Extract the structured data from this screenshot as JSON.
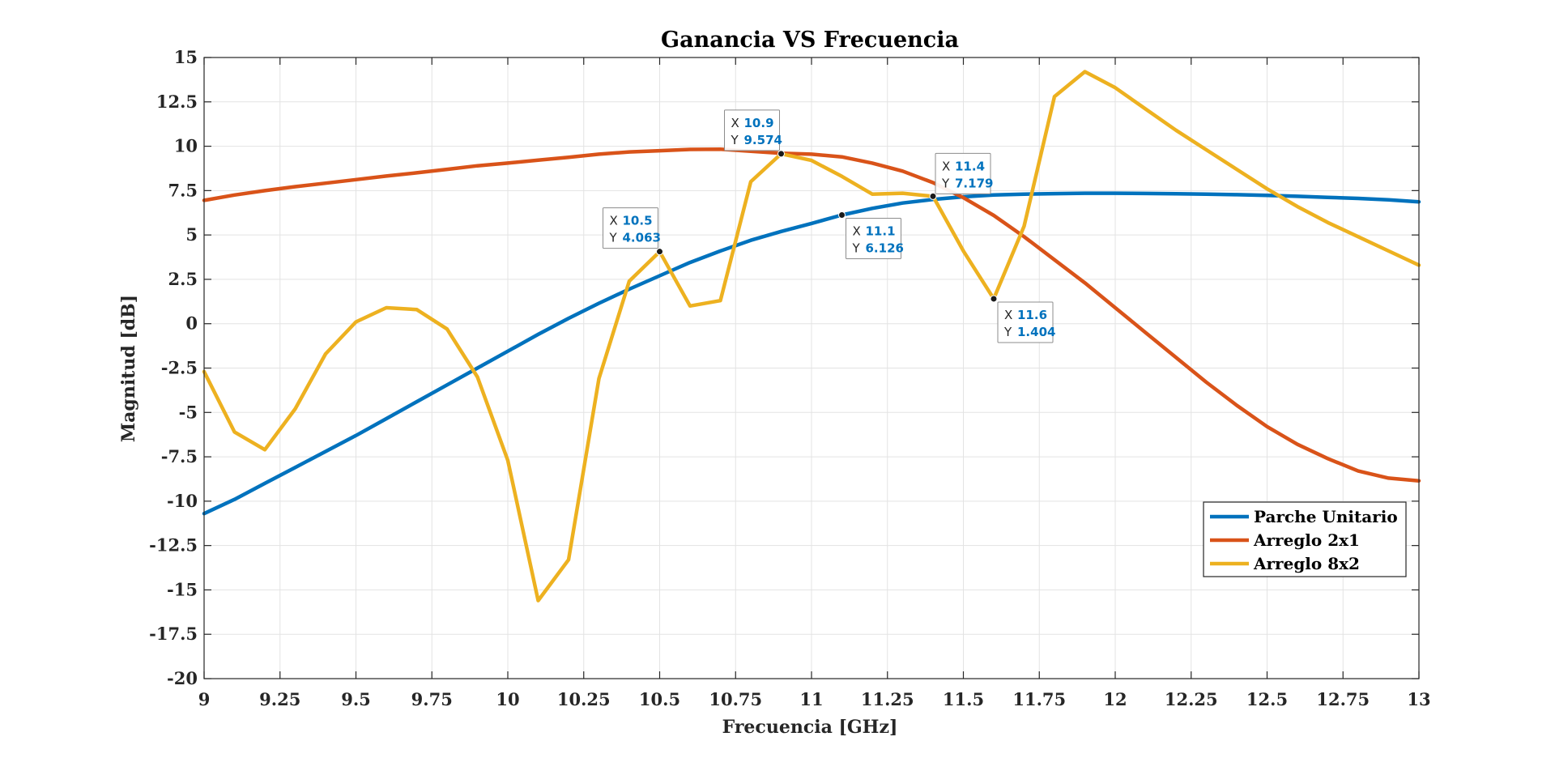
{
  "chart_data": {
    "type": "line",
    "title": "Ganancia VS Frecuencia",
    "xlabel": "Frecuencia [GHz]",
    "ylabel": "Magnitud [dB]",
    "xlim": [
      9,
      13
    ],
    "ylim": [
      -20,
      15
    ],
    "xticks": [
      9,
      9.25,
      9.5,
      9.75,
      10,
      10.25,
      10.5,
      10.75,
      11,
      11.25,
      11.5,
      11.75,
      12,
      12.25,
      12.5,
      12.75,
      13
    ],
    "xtick_labels": [
      "9",
      "9.25",
      "9.5",
      "9.75",
      "10",
      "10.25",
      "10.5",
      "10.75",
      "11",
      "11.25",
      "11.5",
      "11.75",
      "12",
      "12.25",
      "12.5",
      "12.75",
      "13"
    ],
    "yticks": [
      -20,
      -17.5,
      -15,
      -12.5,
      -10,
      -7.5,
      -5,
      -2.5,
      0,
      2.5,
      5,
      7.5,
      10,
      12.5,
      15
    ],
    "ytick_labels": [
      "-20",
      "-17.5",
      "-15",
      "-12.5",
      "-10",
      "-7.5",
      "-5",
      "-2.5",
      "0",
      "2.5",
      "5",
      "7.5",
      "10",
      "12.5",
      "15"
    ],
    "grid": true,
    "legend_position": "bottom-right",
    "series": [
      {
        "name": "Parche Unitario",
        "color": "#0072bd",
        "points": [
          [
            9,
            -10.7
          ],
          [
            9.1,
            -9.9
          ],
          [
            9.2,
            -9.0
          ],
          [
            9.3,
            -8.1
          ],
          [
            9.4,
            -7.2
          ],
          [
            9.5,
            -6.3
          ],
          [
            9.6,
            -5.35
          ],
          [
            9.7,
            -4.4
          ],
          [
            9.8,
            -3.45
          ],
          [
            9.9,
            -2.5
          ],
          [
            10,
            -1.55
          ],
          [
            10.1,
            -0.6
          ],
          [
            10.2,
            0.3
          ],
          [
            10.3,
            1.15
          ],
          [
            10.4,
            1.95
          ],
          [
            10.5,
            2.7
          ],
          [
            10.6,
            3.45
          ],
          [
            10.7,
            4.1
          ],
          [
            10.8,
            4.7
          ],
          [
            10.9,
            5.2
          ],
          [
            11,
            5.65
          ],
          [
            11.1,
            6.126
          ],
          [
            11.2,
            6.5
          ],
          [
            11.3,
            6.8
          ],
          [
            11.4,
            7.0
          ],
          [
            11.5,
            7.15
          ],
          [
            11.6,
            7.25
          ],
          [
            11.7,
            7.3
          ],
          [
            11.8,
            7.33
          ],
          [
            11.9,
            7.35
          ],
          [
            12,
            7.35
          ],
          [
            12.1,
            7.34
          ],
          [
            12.2,
            7.32
          ],
          [
            12.3,
            7.3
          ],
          [
            12.4,
            7.27
          ],
          [
            12.5,
            7.23
          ],
          [
            12.6,
            7.18
          ],
          [
            12.7,
            7.12
          ],
          [
            12.8,
            7.06
          ],
          [
            12.9,
            6.98
          ],
          [
            13,
            6.87
          ]
        ]
      },
      {
        "name": "Arreglo 2x1",
        "color": "#d95319",
        "points": [
          [
            9,
            6.95
          ],
          [
            9.1,
            7.25
          ],
          [
            9.2,
            7.5
          ],
          [
            9.3,
            7.72
          ],
          [
            9.4,
            7.92
          ],
          [
            9.5,
            8.12
          ],
          [
            9.6,
            8.32
          ],
          [
            9.7,
            8.5
          ],
          [
            9.8,
            8.7
          ],
          [
            9.9,
            8.9
          ],
          [
            10,
            9.05
          ],
          [
            10.1,
            9.22
          ],
          [
            10.2,
            9.38
          ],
          [
            10.3,
            9.55
          ],
          [
            10.4,
            9.68
          ],
          [
            10.5,
            9.75
          ],
          [
            10.6,
            9.82
          ],
          [
            10.7,
            9.83
          ],
          [
            10.8,
            9.72
          ],
          [
            10.9,
            9.6
          ],
          [
            11,
            9.55
          ],
          [
            11.1,
            9.4
          ],
          [
            11.2,
            9.05
          ],
          [
            11.3,
            8.6
          ],
          [
            11.4,
            7.95
          ],
          [
            11.5,
            7.1
          ],
          [
            11.6,
            6.1
          ],
          [
            11.7,
            4.9
          ],
          [
            11.8,
            3.6
          ],
          [
            11.9,
            2.3
          ],
          [
            12,
            0.9
          ],
          [
            12.1,
            -0.5
          ],
          [
            12.2,
            -1.9
          ],
          [
            12.3,
            -3.3
          ],
          [
            12.4,
            -4.6
          ],
          [
            12.5,
            -5.8
          ],
          [
            12.6,
            -6.8
          ],
          [
            12.7,
            -7.6
          ],
          [
            12.8,
            -8.3
          ],
          [
            12.9,
            -8.7
          ],
          [
            13,
            -8.85
          ]
        ]
      },
      {
        "name": "Arreglo 8x2",
        "color": "#edb120",
        "points": [
          [
            9,
            -2.7
          ],
          [
            9.1,
            -6.1
          ],
          [
            9.2,
            -7.1
          ],
          [
            9.3,
            -4.8
          ],
          [
            9.4,
            -1.7
          ],
          [
            9.5,
            0.1
          ],
          [
            9.6,
            0.9
          ],
          [
            9.7,
            0.8
          ],
          [
            9.8,
            -0.3
          ],
          [
            9.9,
            -3.0
          ],
          [
            10,
            -7.7
          ],
          [
            10.1,
            -15.6
          ],
          [
            10.2,
            -13.3
          ],
          [
            10.3,
            -3.1
          ],
          [
            10.4,
            2.4
          ],
          [
            10.5,
            4.063
          ],
          [
            10.6,
            1.0
          ],
          [
            10.7,
            1.3
          ],
          [
            10.8,
            8.0
          ],
          [
            10.9,
            9.574
          ],
          [
            11,
            9.2
          ],
          [
            11.1,
            8.3
          ],
          [
            11.2,
            7.3
          ],
          [
            11.3,
            7.35
          ],
          [
            11.4,
            7.179
          ],
          [
            11.5,
            4.1
          ],
          [
            11.6,
            1.404
          ],
          [
            11.7,
            5.5
          ],
          [
            11.8,
            12.8
          ],
          [
            11.9,
            14.2
          ],
          [
            12,
            13.3
          ],
          [
            12.1,
            12.1
          ],
          [
            12.2,
            10.9
          ],
          [
            12.3,
            9.8
          ],
          [
            12.4,
            8.7
          ],
          [
            12.5,
            7.6
          ],
          [
            12.6,
            6.6
          ],
          [
            12.7,
            5.7
          ],
          [
            12.8,
            4.9
          ],
          [
            12.9,
            4.1
          ],
          [
            13,
            3.3
          ]
        ]
      }
    ],
    "datatips": [
      {
        "x_label": "X",
        "y_label": "Y",
        "x": "10.5",
        "y": "4.063",
        "px": 10.5,
        "py": 4.063,
        "placement": "above-left"
      },
      {
        "x_label": "X",
        "y_label": "Y",
        "x": "10.9",
        "y": "9.574",
        "px": 10.9,
        "py": 9.574,
        "placement": "above-left"
      },
      {
        "x_label": "X",
        "y_label": "Y",
        "x": "11.1",
        "y": "6.126",
        "px": 11.1,
        "py": 6.126,
        "placement": "below-right"
      },
      {
        "x_label": "X",
        "y_label": "Y",
        "x": "11.4",
        "y": "7.179",
        "px": 11.4,
        "py": 7.179,
        "placement": "above-right"
      },
      {
        "x_label": "X",
        "y_label": "Y",
        "x": "11.6",
        "y": "1.404",
        "px": 11.6,
        "py": 1.404,
        "placement": "below-right"
      }
    ]
  }
}
